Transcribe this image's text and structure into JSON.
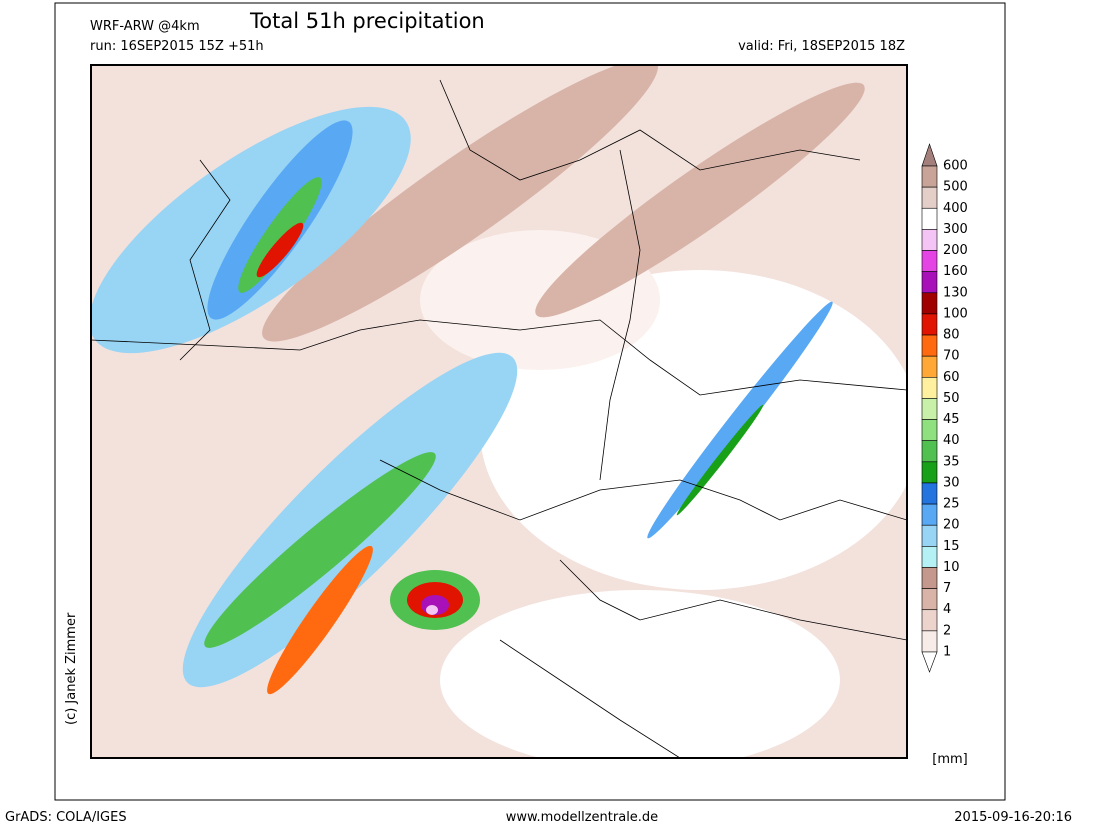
{
  "header": {
    "model": "WRF-ARW @4km",
    "title": "Total 51h precipitation",
    "run": "run: 16SEP2015 15Z +51h",
    "valid": "valid: Fri, 18SEP2015 18Z"
  },
  "credit": "(c) Janek Zimmer",
  "colorbar": {
    "labels": [
      600,
      500,
      400,
      300,
      200,
      160,
      130,
      100,
      80,
      70,
      60,
      50,
      45,
      40,
      35,
      30,
      25,
      20,
      15,
      10,
      7,
      4,
      2,
      1
    ],
    "colors": [
      "#c8a498",
      "#e4cec8",
      "#ffffff",
      "#f4c4f4",
      "#e444e4",
      "#a810b8",
      "#a00000",
      "#e01400",
      "#ff6a10",
      "#ffa838",
      "#fff0a0",
      "#c8f0a8",
      "#90e080",
      "#50c050",
      "#18a018",
      "#2474e0",
      "#58a8f4",
      "#98d4f4",
      "#b4f0f4",
      "#c4988c",
      "#d8b4a8",
      "#ecd4cc",
      "#f8ece8"
    ],
    "top_color": "#a4807c",
    "bottom_color": "#ffffff",
    "unit": "[mm]"
  },
  "footer": {
    "left": "GrADS: COLA/IGES",
    "center": "www.modellzentrale.de",
    "right": "2015-09-16-20:16"
  }
}
